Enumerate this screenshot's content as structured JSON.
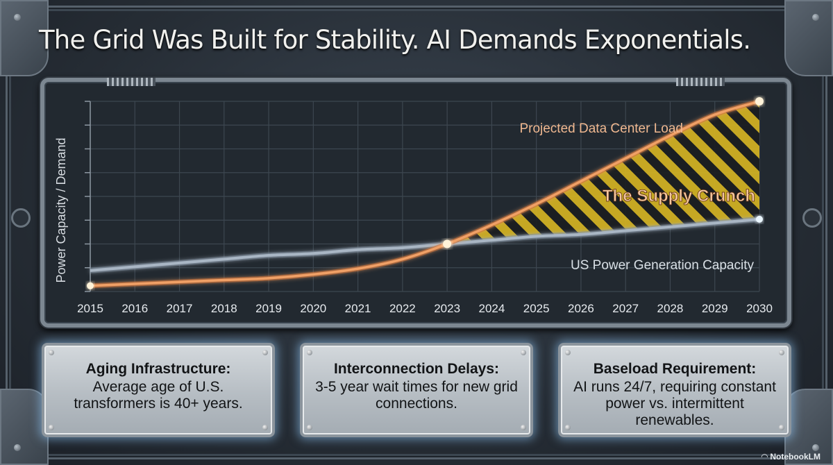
{
  "title": "The Grid Was Built for Stability. AI Demands Exponentials.",
  "chart_data": {
    "type": "line",
    "x": [
      2015,
      2016,
      2017,
      2018,
      2019,
      2020,
      2021,
      2022,
      2023,
      2024,
      2025,
      2026,
      2027,
      2028,
      2029,
      2030
    ],
    "ylabel": "Power Capacity / Demand",
    "xlabel": "",
    "ylim": [
      0,
      100
    ],
    "grid": true,
    "series": [
      {
        "name": "Projected Data Center Load",
        "color": "#f0a066",
        "values": [
          3,
          4,
          5,
          6,
          7,
          9,
          12,
          17,
          25,
          35,
          46,
          58,
          70,
          82,
          93,
          100
        ]
      },
      {
        "name": "US Power Generation Capacity",
        "color": "#a9b6c4",
        "values": [
          11,
          13,
          15,
          17,
          19,
          20,
          22,
          23,
          25,
          27,
          29,
          30,
          32,
          34,
          36,
          38
        ]
      }
    ],
    "annotations": [
      {
        "text": "The Supply Crunch",
        "shading": "yellow-black hazard stripes between the two curves after the 2023 crossover"
      }
    ]
  },
  "info_boxes": [
    {
      "heading": "Aging Infrastructure:",
      "body": "Average age of U.S. transformers is 40+ years."
    },
    {
      "heading": "Interconnection Delays:",
      "body": "3-5 year wait times for new grid connections."
    },
    {
      "heading": "Baseload Requirement:",
      "body": "AI runs 24/7, requiring constant power vs. intermittent renewables."
    }
  ],
  "brand": "NotebookLM"
}
